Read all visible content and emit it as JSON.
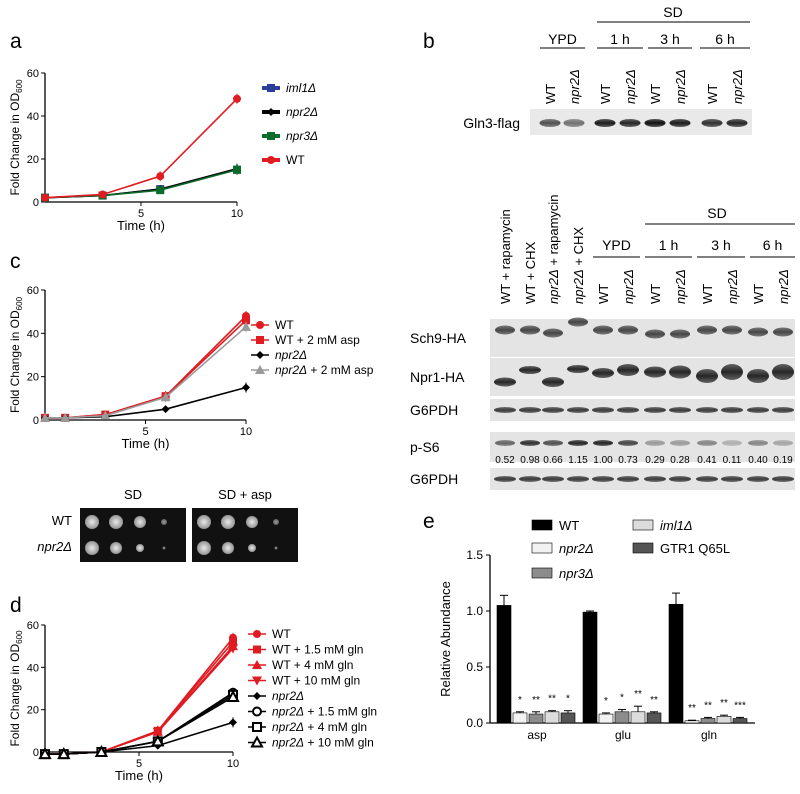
{
  "panels": {
    "a": {
      "letter": "a"
    },
    "b": {
      "letter": "b"
    },
    "c": {
      "letter": "c"
    },
    "d": {
      "letter": "d"
    },
    "e": {
      "letter": "e"
    }
  },
  "chart_data": [
    {
      "id": "a",
      "type": "line",
      "xlabel": "Time (h)",
      "ylabel_main": "Fold Change in OD",
      "ylabel_sub": "600",
      "xlim": [
        0,
        10
      ],
      "ylim": [
        0,
        60
      ],
      "xticks": [
        5,
        10
      ],
      "yticks": [
        0,
        20,
        40,
        60
      ],
      "x": [
        0,
        3,
        6,
        10
      ],
      "series": [
        {
          "name": "iml1Δ",
          "italic": true,
          "color": "#2a3f9a",
          "marker": "square",
          "values": [
            2,
            3,
            6,
            15
          ]
        },
        {
          "name": "npr2Δ",
          "italic": true,
          "color": "#000000",
          "marker": "diamond",
          "values": [
            2,
            3,
            6,
            15.5
          ]
        },
        {
          "name": "npr3Δ",
          "italic": true,
          "color": "#0b6b2a",
          "marker": "square",
          "values": [
            2,
            3,
            5.5,
            15
          ]
        },
        {
          "name": "WT",
          "italic": false,
          "color": "#e11b22",
          "marker": "circle",
          "values": [
            2,
            3.5,
            12,
            48
          ]
        }
      ]
    },
    {
      "id": "c",
      "type": "line",
      "xlabel": "Time (h)",
      "ylabel_main": "Fold Change in OD",
      "ylabel_sub": "600",
      "xlim": [
        0,
        10
      ],
      "ylim": [
        0,
        60
      ],
      "xticks": [
        5,
        10
      ],
      "yticks": [
        0,
        20,
        40,
        60
      ],
      "x": [
        0,
        1,
        3,
        6,
        10
      ],
      "series": [
        {
          "name": "WT",
          "suffix": "",
          "color": "#e11b22",
          "marker": "circle",
          "values": [
            1,
            1,
            2.5,
            11,
            48
          ]
        },
        {
          "name": "WT",
          "suffix": "+ 2 mM asp",
          "color": "#e11b22",
          "marker": "square",
          "values": [
            1,
            1,
            2.5,
            11,
            46
          ]
        },
        {
          "name": "npr2Δ",
          "suffix": "",
          "color": "#000000",
          "marker": "diamond",
          "values": [
            1,
            1,
            1.5,
            5,
            15
          ]
        },
        {
          "name": "npr2Δ",
          "suffix": "+ 2 mM asp",
          "color": "#9a9a9a",
          "marker": "triangle",
          "values": [
            1,
            1,
            2,
            10.5,
            43
          ]
        }
      ]
    },
    {
      "id": "d",
      "type": "line",
      "xlabel": "Time (h)",
      "ylabel_main": "Fold Change in OD",
      "ylabel_sub": "600",
      "xlim": [
        0,
        10
      ],
      "ylim": [
        0,
        60
      ],
      "xticks": [
        5,
        10
      ],
      "yticks": [
        0,
        20,
        40,
        60
      ],
      "x": [
        0,
        1,
        3,
        6,
        10
      ],
      "series": [
        {
          "name": "WT",
          "suffix": "",
          "color": "#e11b22",
          "marker": "circle",
          "values": [
            -1,
            -1,
            0,
            10,
            54
          ]
        },
        {
          "name": "WT",
          "suffix": "+ 1.5 mM gln",
          "color": "#e11b22",
          "marker": "square",
          "values": [
            -1,
            -1,
            0,
            10,
            52
          ]
        },
        {
          "name": "WT",
          "suffix": "+    4 mM gln",
          "color": "#e11b22",
          "marker": "triangle",
          "values": [
            -1,
            -1,
            0,
            9.5,
            50
          ]
        },
        {
          "name": "WT",
          "suffix": "+  10 mM gln",
          "color": "#e11b22",
          "marker": "triangle-down",
          "values": [
            -1,
            -1,
            0,
            9.5,
            49
          ]
        },
        {
          "name": "npr2Δ",
          "suffix": "",
          "color": "#000000",
          "marker": "diamond",
          "values": [
            -1,
            -1,
            0,
            3,
            14
          ]
        },
        {
          "name": "npr2Δ",
          "suffix": "+ 1.5 mM gln",
          "color": "#000000",
          "marker": "circle-open",
          "values": [
            -1,
            -1,
            0,
            5,
            28
          ]
        },
        {
          "name": "npr2Δ",
          "suffix": "+   4 mM gln",
          "color": "#000000",
          "marker": "square-open",
          "values": [
            -1,
            -1,
            0,
            5,
            27
          ]
        },
        {
          "name": "npr2Δ",
          "suffix": "+ 10 mM gln",
          "color": "#000000",
          "marker": "triangle-open",
          "values": [
            -1,
            -1,
            0,
            5,
            26
          ]
        }
      ]
    },
    {
      "id": "e",
      "type": "bar",
      "ylabel": "Relative Abundance",
      "ylim": [
        0,
        1.5
      ],
      "yticks": [
        "0.0",
        "0.5",
        "1.0",
        "1.5"
      ],
      "categories": [
        "asp",
        "glu",
        "gln"
      ],
      "series": [
        {
          "name": "WT",
          "italic": false,
          "color": "#000000",
          "values": [
            1.05,
            0.99,
            1.06
          ],
          "err": [
            0.09,
            0.01,
            0.1
          ]
        },
        {
          "name": "npr2Δ",
          "italic": true,
          "color": "#f2f2f2",
          "values": [
            0.09,
            0.08,
            0.02
          ],
          "err": [
            0.01,
            0.01,
            0.005
          ]
        },
        {
          "name": "npr3Δ",
          "italic": true,
          "color": "#8c8c8c",
          "values": [
            0.08,
            0.1,
            0.04
          ],
          "err": [
            0.02,
            0.02,
            0.01
          ]
        },
        {
          "name": "iml1Δ",
          "italic": true,
          "color": "#dcdcdc",
          "values": [
            0.1,
            0.1,
            0.06
          ],
          "err": [
            0.01,
            0.05,
            0.01
          ]
        },
        {
          "name": "GTR1 Q65L",
          "italic": false,
          "color": "#555555",
          "values": [
            0.09,
            0.09,
            0.04
          ],
          "err": [
            0.02,
            0.01,
            0.01
          ]
        }
      ],
      "significance": [
        [
          "*",
          "**",
          "**",
          "*"
        ],
        [
          "*",
          "*",
          "**",
          "**"
        ],
        [
          "**",
          "**",
          "**",
          "***"
        ]
      ]
    }
  ],
  "blots_b": {
    "top": {
      "groups": [
        {
          "label": "YPD"
        },
        {
          "label": "1 h"
        },
        {
          "label": "3 h"
        },
        {
          "label": "6 h"
        }
      ],
      "sd_label": "SD",
      "lanes": [
        "WT",
        "npr2Δ",
        "WT",
        "npr2Δ",
        "WT",
        "npr2Δ",
        "WT",
        "npr2Δ"
      ],
      "row": "Gln3-flag"
    },
    "bottom": {
      "treat_lanes": [
        "WT + rapamycin",
        "WT + CHX",
        "npr2Δ + rapamycin",
        "npr2Δ + CHX"
      ],
      "groups": [
        {
          "label": "YPD"
        },
        {
          "label": "1 h"
        },
        {
          "label": "3 h"
        },
        {
          "label": "6 h"
        }
      ],
      "sd_label": "SD",
      "lanes": [
        "WT",
        "npr2Δ",
        "WT",
        "npr2Δ",
        "WT",
        "npr2Δ",
        "WT",
        "npr2Δ"
      ],
      "rows": [
        "Sch9-HA",
        "Npr1-HA",
        "G6PDH",
        "p-S6",
        "G6PDH"
      ],
      "ps6_values": [
        "0.52",
        "0.98",
        "0.66",
        "1.15",
        "1.00",
        "0.73",
        "0.29",
        "0.28",
        "0.41",
        "0.11",
        "0.40",
        "0.19"
      ]
    }
  },
  "spot_assay": {
    "conditions": [
      "SD",
      "SD + asp"
    ],
    "strains": [
      "WT",
      "npr2Δ"
    ]
  }
}
